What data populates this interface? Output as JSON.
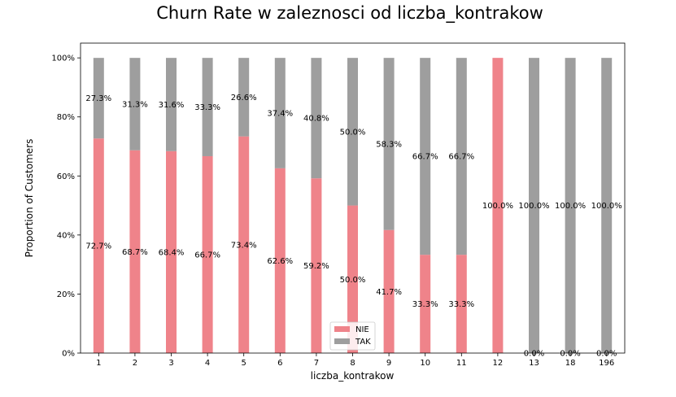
{
  "chart_data": {
    "type": "bar",
    "stacked": true,
    "normalized": true,
    "title": "Churn Rate w zaleznosci od liczba_kontrakow",
    "xlabel": "liczba_kontrakow",
    "ylabel": "Proportion of Customers",
    "ylim": [
      0,
      1.05
    ],
    "yticks": [
      0,
      0.2,
      0.4,
      0.6,
      0.8,
      1.0
    ],
    "ytick_labels": [
      "0%",
      "20%",
      "40%",
      "60%",
      "80%",
      "100%"
    ],
    "categories": [
      "1",
      "2",
      "3",
      "4",
      "5",
      "6",
      "7",
      "8",
      "9",
      "10",
      "11",
      "12",
      "13",
      "18",
      "196"
    ],
    "series": [
      {
        "name": "NIE",
        "color": "#ef838a",
        "values": [
          0.727,
          0.687,
          0.684,
          0.667,
          0.734,
          0.626,
          0.592,
          0.5,
          0.417,
          0.333,
          0.333,
          1.0,
          0.0,
          0.0,
          0.0
        ],
        "labels": [
          "72.7%",
          "68.7%",
          "68.4%",
          "66.7%",
          "73.4%",
          "62.6%",
          "59.2%",
          "50.0%",
          "41.7%",
          "33.3%",
          "33.3%",
          "100.0%",
          "0.0%",
          "0.0%",
          "0.0%"
        ]
      },
      {
        "name": "TAK",
        "color": "#9e9e9e",
        "values": [
          0.273,
          0.313,
          0.316,
          0.333,
          0.266,
          0.374,
          0.408,
          0.5,
          0.583,
          0.667,
          0.667,
          0.0,
          1.0,
          1.0,
          1.0
        ],
        "labels": [
          "27.3%",
          "31.3%",
          "31.6%",
          "33.3%",
          "26.6%",
          "37.4%",
          "40.8%",
          "50.0%",
          "58.3%",
          "66.7%",
          "66.7%",
          "",
          "100.0%",
          "100.0%",
          "100.0%"
        ]
      }
    ],
    "legend": {
      "position": "bottom-center",
      "entries": [
        "NIE",
        "TAK"
      ]
    },
    "grid": false
  }
}
